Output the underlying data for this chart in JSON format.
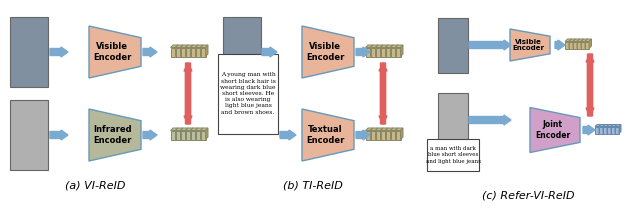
{
  "fig_width": 6.4,
  "fig_height": 2.19,
  "dpi": 100,
  "bg_color": "#ffffff",
  "encoder_visible_color": "#E8B49A",
  "encoder_infrared_color": "#B5B99A",
  "encoder_textual_color": "#E8B49A",
  "encoder_joint_color": "#C9A0C0",
  "feature_color": "#D4C5A0",
  "feature_blue_color": "#A0B8D8",
  "text_box_color": "#ffffff",
  "arrow_blue": "#7BAAD0",
  "arrow_red": "#E06060",
  "caption_a": "(a) VI-ReID",
  "caption_b": "(b) TI-ReID",
  "caption_c": "(c) Refer-VI-ReID",
  "label_visible": "Visible\nEncoder",
  "label_infrared": "Infrared\nEncoder",
  "label_textual": "Textual\nEncoder",
  "label_joint": "Joint\nEncoder",
  "text_box_content": "A young man with\nshort black hair is\nwearing dark blue\nshort sleeves. He\nis also wearing\nlight blue jeans\nand brown shoes.",
  "text_box_content2": "a man with dark\nblue short sleeves\nand light blue jeans"
}
